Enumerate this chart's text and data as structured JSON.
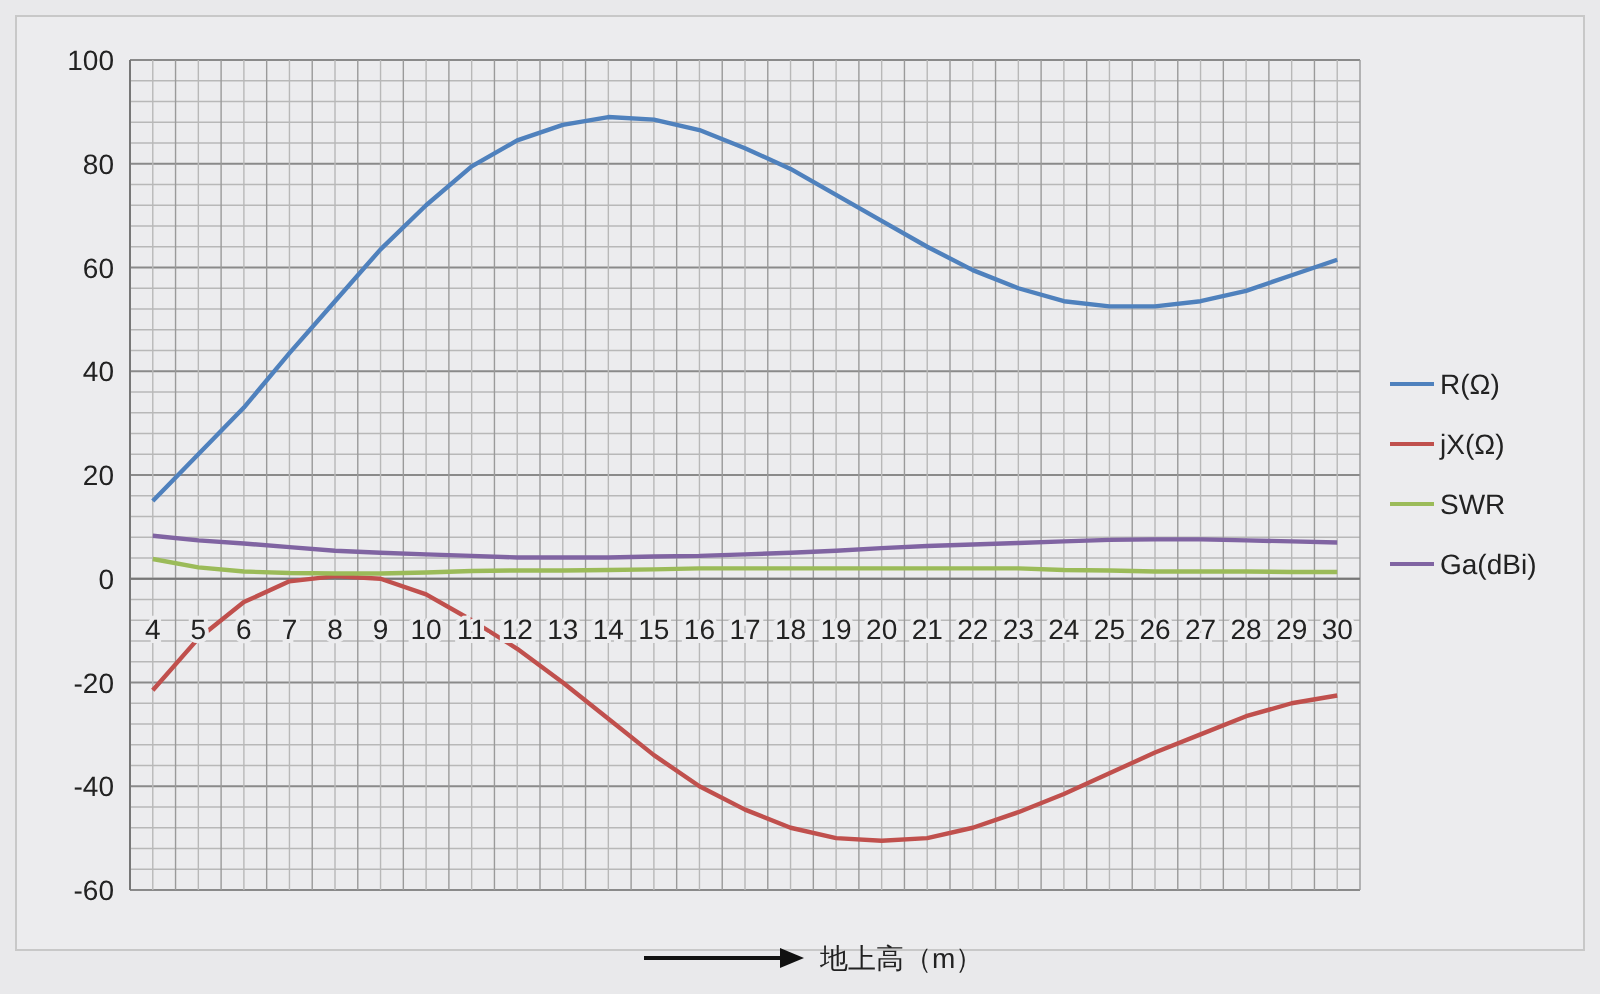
{
  "chart_data": {
    "type": "line",
    "xlabel": "地上高（m）",
    "categories": [
      "4",
      "5",
      "6",
      "7",
      "8",
      "9",
      "10",
      "11",
      "12",
      "13",
      "14",
      "15",
      "16",
      "17",
      "18",
      "19",
      "20",
      "21",
      "22",
      "23",
      "24",
      "25",
      "26",
      "27",
      "28",
      "29",
      "30"
    ],
    "series": [
      {
        "name": "R(Ω)",
        "color": "#4f81bd",
        "values": [
          15,
          24,
          33,
          43.5,
          53.5,
          63.5,
          72,
          79.5,
          84.5,
          87.5,
          89,
          88.5,
          86.5,
          83,
          79,
          74,
          69,
          64,
          59.5,
          56,
          53.5,
          52.5,
          52.5,
          53.5,
          55.5,
          58.5,
          61.5
        ]
      },
      {
        "name": "jX(Ω)",
        "color": "#c0504d",
        "values": [
          -21.5,
          -11.5,
          -4.5,
          -0.5,
          0.5,
          0,
          -3,
          -8,
          -13.5,
          -20,
          -27,
          -34,
          -40,
          -44.5,
          -48,
          -50,
          -50.5,
          -50,
          -48,
          -45,
          -41.5,
          -37.5,
          -33.5,
          -30,
          -26.5,
          -24,
          -22.5
        ]
      },
      {
        "name": "SWR",
        "color": "#9bbb59",
        "values": [
          3.8,
          2.2,
          1.4,
          1.1,
          1,
          1,
          1.2,
          1.5,
          1.6,
          1.6,
          1.7,
          1.8,
          2,
          2,
          2,
          2,
          2,
          2,
          2,
          2,
          1.7,
          1.6,
          1.4,
          1.4,
          1.4,
          1.3,
          1.3
        ]
      },
      {
        "name": "Ga(dBi)",
        "color": "#8064a2",
        "values": [
          8.3,
          7.4,
          6.8,
          6.1,
          5.4,
          5,
          4.7,
          4.4,
          4.1,
          4.1,
          4.1,
          4.3,
          4.4,
          4.7,
          5,
          5.4,
          5.9,
          6.3,
          6.6,
          6.9,
          7.2,
          7.5,
          7.6,
          7.6,
          7.4,
          7.2,
          7
        ]
      }
    ],
    "ylim": [
      -60,
      100
    ],
    "yticks": [
      -60,
      -40,
      -20,
      0,
      20,
      40,
      60,
      80,
      100
    ],
    "grid": true,
    "legend": "right"
  }
}
